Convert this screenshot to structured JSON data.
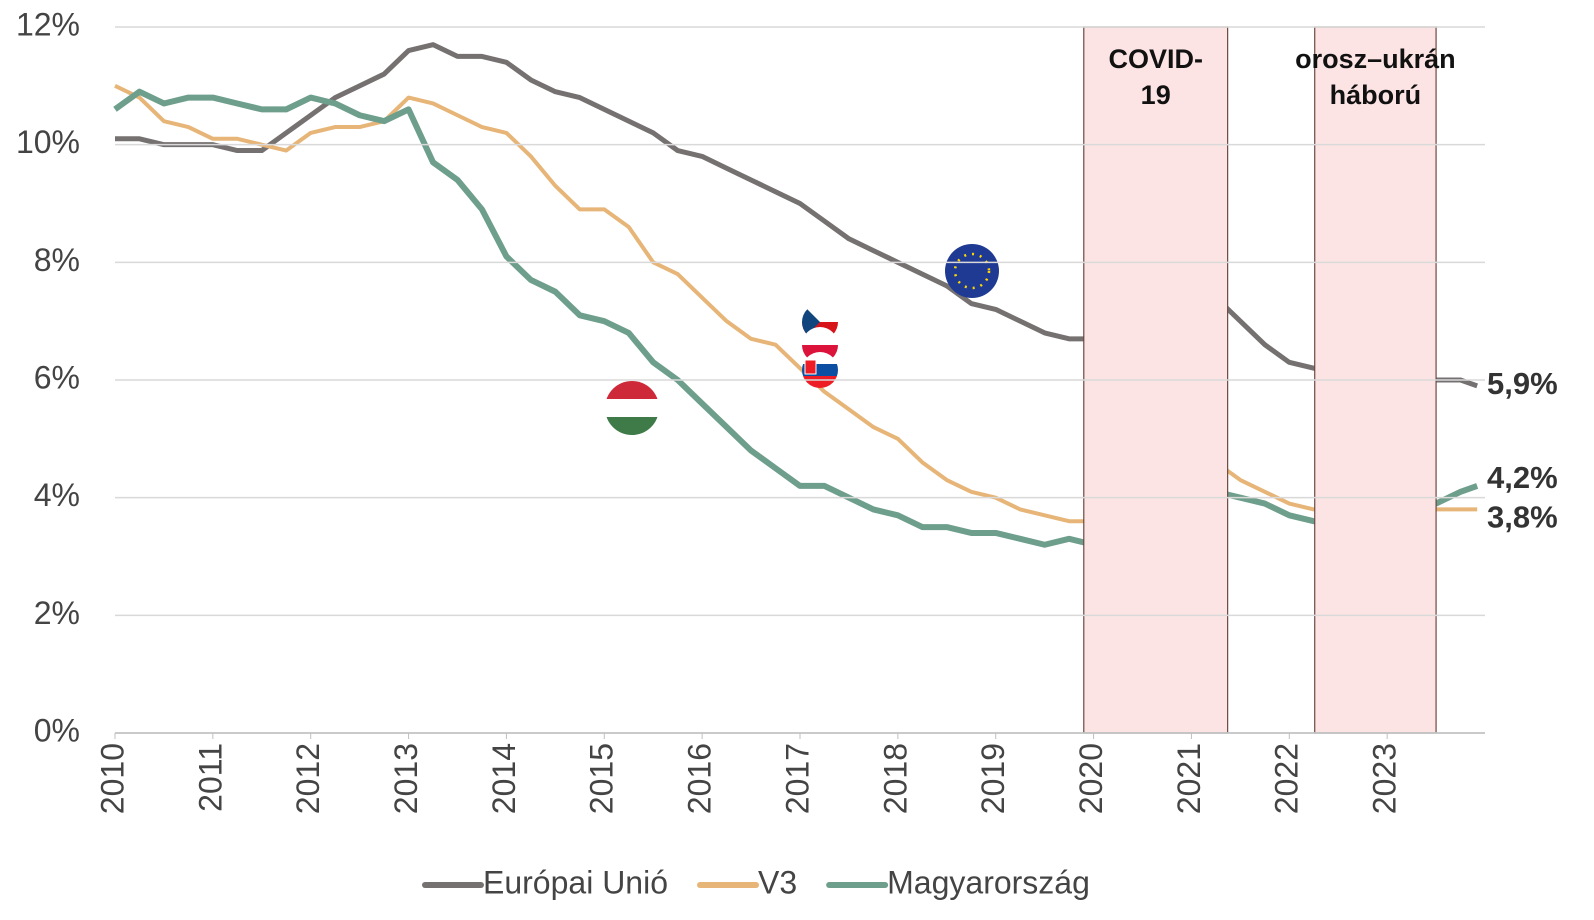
{
  "chart_data": {
    "type": "line",
    "x": [
      2010,
      2010.25,
      2010.5,
      2010.75,
      2011,
      2011.25,
      2011.5,
      2011.75,
      2012,
      2012.25,
      2012.5,
      2012.75,
      2013,
      2013.25,
      2013.5,
      2013.75,
      2014,
      2014.25,
      2014.5,
      2014.75,
      2015,
      2015.25,
      2015.5,
      2015.75,
      2016,
      2016.25,
      2016.5,
      2016.75,
      2017,
      2017.25,
      2017.5,
      2017.75,
      2018,
      2018.25,
      2018.5,
      2018.75,
      2019,
      2019.25,
      2019.5,
      2019.75,
      2020,
      2020.25,
      2020.5,
      2020.75,
      2021,
      2021.25,
      2021.5,
      2021.75,
      2022,
      2022.25,
      2022.5,
      2022.75,
      2023,
      2023.25,
      2023.5,
      2023.75,
      2023.92
    ],
    "series": [
      {
        "name": "Európai Unió",
        "color": "#767171",
        "width": 5,
        "last_label": "5,9%",
        "values": [
          10.1,
          10.1,
          10.0,
          10.0,
          10.0,
          9.9,
          9.9,
          10.2,
          10.5,
          10.8,
          11.0,
          11.2,
          11.6,
          11.7,
          11.5,
          11.5,
          11.4,
          11.1,
          10.9,
          10.8,
          10.6,
          10.4,
          10.2,
          9.9,
          9.8,
          9.6,
          9.4,
          9.2,
          9.0,
          8.7,
          8.4,
          8.2,
          8.0,
          7.8,
          7.6,
          7.3,
          7.2,
          7.0,
          6.8,
          6.7,
          6.7,
          6.5,
          7.6,
          7.6,
          7.5,
          7.4,
          7.0,
          6.6,
          6.3,
          6.2,
          6.1,
          6.1,
          6.1,
          6.0,
          6.0,
          6.0,
          5.9
        ]
      },
      {
        "name": "V3",
        "color": "#e6b577",
        "width": 4,
        "last_label": "3,8%",
        "values": [
          11.0,
          10.8,
          10.4,
          10.3,
          10.1,
          10.1,
          10.0,
          9.9,
          10.2,
          10.3,
          10.3,
          10.4,
          10.8,
          10.7,
          10.5,
          10.3,
          10.2,
          9.8,
          9.3,
          8.9,
          8.9,
          8.6,
          8.0,
          7.8,
          7.4,
          7.0,
          6.7,
          6.6,
          6.2,
          5.8,
          5.5,
          5.2,
          5.0,
          4.6,
          4.3,
          4.1,
          4.0,
          3.8,
          3.7,
          3.6,
          3.6,
          3.6,
          4.2,
          4.4,
          4.5,
          4.6,
          4.3,
          4.1,
          3.9,
          3.8,
          3.8,
          3.7,
          3.8,
          3.7,
          3.8,
          3.8,
          3.8
        ]
      },
      {
        "name": "Magyarország",
        "color": "#6e9e8c",
        "width": 6,
        "last_label": "4,2%",
        "values": [
          10.6,
          10.9,
          10.7,
          10.8,
          10.8,
          10.7,
          10.6,
          10.6,
          10.8,
          10.7,
          10.5,
          10.4,
          10.6,
          9.7,
          9.4,
          8.9,
          8.1,
          7.7,
          7.5,
          7.1,
          7.0,
          6.8,
          6.3,
          6.0,
          5.6,
          5.2,
          4.8,
          4.5,
          4.2,
          4.2,
          4.0,
          3.8,
          3.7,
          3.5,
          3.5,
          3.4,
          3.4,
          3.3,
          3.2,
          3.3,
          3.2,
          4.2,
          4.5,
          4.3,
          4.3,
          4.1,
          4.0,
          3.9,
          3.7,
          3.6,
          3.5,
          3.7,
          3.8,
          3.8,
          3.9,
          4.1,
          4.2
        ]
      }
    ],
    "highlights": [
      {
        "label": "COVID-19",
        "range": [
          2019.9,
          2021.37
        ],
        "color": "#fde4e4"
      },
      {
        "label": "orosz–ukrán háború",
        "range": [
          2022.26,
          2023.5
        ],
        "color": "#fde4e4"
      }
    ],
    "xlim": [
      2010,
      2024
    ],
    "xticks": [
      2010,
      2011,
      2012,
      2013,
      2014,
      2015,
      2016,
      2017,
      2018,
      2019,
      2020,
      2021,
      2022,
      2023
    ],
    "ylim": [
      0,
      12
    ],
    "yticks": [
      {
        "value": 0,
        "label": "0%"
      },
      {
        "value": 2,
        "label": "2%"
      },
      {
        "value": 4,
        "label": "4%"
      },
      {
        "value": 6,
        "label": "6%"
      },
      {
        "value": 8,
        "label": "8%"
      },
      {
        "value": 10,
        "label": "10%"
      },
      {
        "value": 12,
        "label": "12%"
      }
    ],
    "grid": true,
    "legend": "bottom"
  }
}
